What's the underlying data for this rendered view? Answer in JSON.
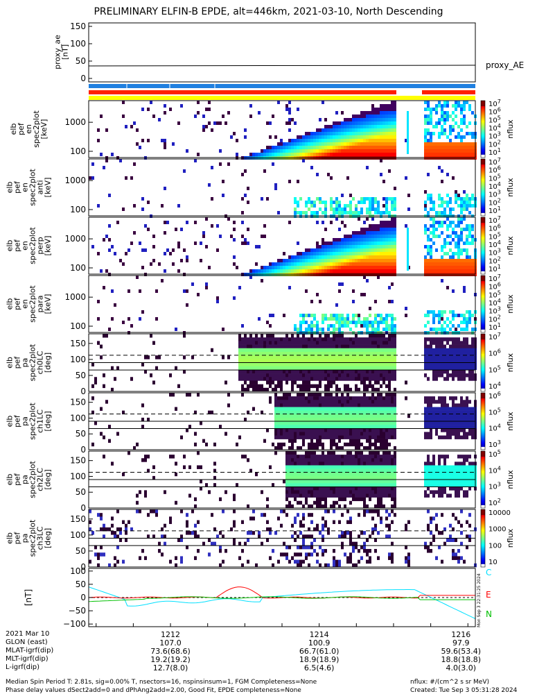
{
  "title": "PRELIMINARY ELFIN-B EPDE, alt=446km, 2021-03-10, North Descending",
  "proxy_ae": {
    "ylabel": [
      "proxy_ae",
      "[nT]"
    ],
    "yticks": [
      "150",
      "100",
      "50",
      "0"
    ],
    "trace_label": "proxy_AE",
    "chart_data": {
      "type": "line",
      "ylim": [
        -10,
        160
      ],
      "x": [
        1210.9,
        1216.1
      ],
      "y": [
        36,
        38
      ]
    }
  },
  "bars": {
    "blue": "#2080e0",
    "red": "#ff2000",
    "yellow": "#ffff00"
  },
  "spec_panels": [
    {
      "ylabel": [
        "elb",
        "pef",
        "en",
        "spec2plot",
        "[keV]"
      ],
      "yticks": [
        "1000",
        "100"
      ],
      "cbar_ticks": [
        "10^7",
        "10^6",
        "10^5",
        "10^4",
        "10^3",
        "10^2",
        "10^1"
      ],
      "cbar_label": "nflux"
    },
    {
      "ylabel": [
        "elb",
        "pef",
        "en",
        "spec2plot",
        "anti",
        "[keV]"
      ],
      "yticks": [
        "1000",
        "100"
      ],
      "cbar_ticks": [
        "10^7",
        "10^6",
        "10^5",
        "10^4",
        "10^3",
        "10^2",
        "10^1"
      ],
      "cbar_label": "nflux"
    },
    {
      "ylabel": [
        "elb",
        "pef",
        "en",
        "spec2plot",
        "perp",
        "[keV]"
      ],
      "yticks": [
        "1000",
        "100"
      ],
      "cbar_ticks": [
        "10^7",
        "10^6",
        "10^5",
        "10^4",
        "10^3",
        "10^2",
        "10^1"
      ],
      "cbar_label": "nflux"
    },
    {
      "ylabel": [
        "elb",
        "pef",
        "en",
        "spec2plot",
        "para",
        "[keV]"
      ],
      "yticks": [
        "1000",
        "100"
      ],
      "cbar_ticks": [
        "10^7",
        "10^6",
        "10^5",
        "10^4",
        "10^3",
        "10^2",
        "10^1"
      ],
      "cbar_label": "nflux"
    }
  ],
  "pa_panels": [
    {
      "ylabel": [
        "elb",
        "pef",
        "pa",
        "spec2plot",
        "ch0LC",
        "[deg]"
      ],
      "yticks": [
        "150",
        "100",
        "50",
        "0"
      ],
      "cbar_ticks": [
        "10^7",
        "10^6",
        "10^5",
        "10^4"
      ],
      "cbar_label": "nflux"
    },
    {
      "ylabel": [
        "elb",
        "pef",
        "pa",
        "spec2plot",
        "ch1LC",
        "[deg]"
      ],
      "yticks": [
        "150",
        "100",
        "50",
        "0"
      ],
      "cbar_ticks": [
        "10^6",
        "10^5",
        "10^4",
        "10^3"
      ],
      "cbar_label": "nflux"
    },
    {
      "ylabel": [
        "elb",
        "pef",
        "pa",
        "spec2plot",
        "ch2LC",
        "[deg]"
      ],
      "yticks": [
        "150",
        "100",
        "50",
        "0"
      ],
      "cbar_ticks": [
        "10^5",
        "10^4",
        "10^3",
        "10^2"
      ],
      "cbar_label": "nflux"
    },
    {
      "ylabel": [
        "elb",
        "pef",
        "pa",
        "spec2plot",
        "ch3LC",
        "[deg]"
      ],
      "yticks": [
        "150",
        "100",
        "50",
        "0"
      ],
      "cbar_ticks": [
        "10000",
        "1000",
        "100",
        "10"
      ],
      "cbar_label": "nflux"
    }
  ],
  "mag": {
    "ylabel": "[nT]",
    "yticks": [
      "100",
      "50",
      "0",
      "−50",
      "−100"
    ],
    "legend": [
      {
        "label": "C",
        "color": "#00e0ff"
      },
      {
        "label": "E",
        "color": "#ff0000"
      },
      {
        "label": "N",
        "color": "#00c000"
      }
    ],
    "side_note": "Mon Sep 3 22:31:25 2024"
  },
  "xaxis": {
    "tick_labels": [
      "1212",
      "1214",
      "1216"
    ],
    "rows": [
      {
        "name": "2021 Mar 10",
        "values": [
          "1212",
          "1214",
          "1216"
        ]
      },
      {
        "name": "GLON (east)",
        "values": [
          "107.0",
          "100.9",
          "97.9"
        ]
      },
      {
        "name": "MLAT-igrf(dip)",
        "values": [
          "73.6(68.6)",
          "66.7(61.0)",
          "59.6(53.4)"
        ]
      },
      {
        "name": "MLT-igrf(dip)",
        "values": [
          "19.2(19.2)",
          "18.9(18.9)",
          "18.8(18.8)"
        ]
      },
      {
        "name": "L-igrf(dip)",
        "values": [
          "12.7(8.0)",
          "6.5(4.6)",
          "4.0(3.0)"
        ]
      }
    ]
  },
  "footer": {
    "line1": "Median Spin Period T: 2.81s, sig=0.00% T, nsectors=16, nspinsinsum=1, FGM Completeness=None",
    "line2": "Phase delay values dSect2add=0 and dPhAng2add=2.00, Good Fit, EPDE completeness=None",
    "units": "nflux: #/(cm^2 s sr MeV)",
    "created": "Created: Tue Sep  3 05:31:28 2024"
  }
}
